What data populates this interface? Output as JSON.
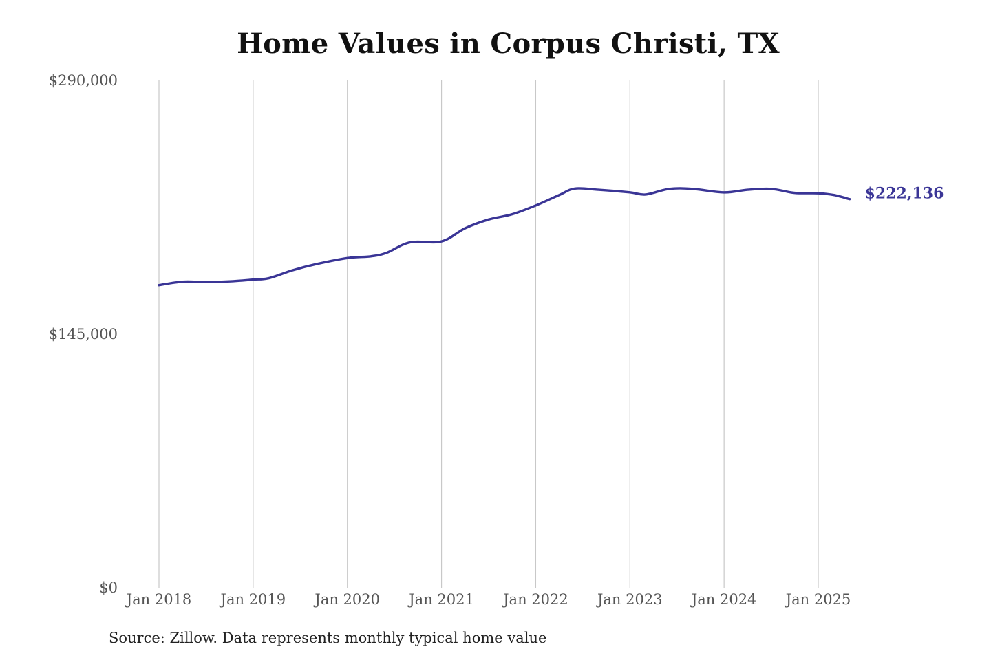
{
  "chart_data": {
    "type": "line",
    "title": "Home Values in Corpus Christi, TX",
    "xlabel": "",
    "ylabel": "",
    "ylim": [
      0,
      290000
    ],
    "y_ticks": [
      {
        "value": 0,
        "label": "$0"
      },
      {
        "value": 145000,
        "label": "$145,000"
      },
      {
        "value": 290000,
        "label": "$290,000"
      }
    ],
    "x_ticks": [
      {
        "value": "2018-01",
        "label": "Jan 2018"
      },
      {
        "value": "2019-01",
        "label": "Jan 2019"
      },
      {
        "value": "2020-01",
        "label": "Jan 2020"
      },
      {
        "value": "2021-01",
        "label": "Jan 2021"
      },
      {
        "value": "2022-01",
        "label": "Jan 2022"
      },
      {
        "value": "2023-01",
        "label": "Jan 2023"
      },
      {
        "value": "2024-01",
        "label": "Jan 2024"
      },
      {
        "value": "2025-01",
        "label": "Jan 2025"
      }
    ],
    "x_range": [
      "2018-01",
      "2025-05"
    ],
    "grid": {
      "vertical": true,
      "horizontal": false
    },
    "line_color": "#3a3596",
    "end_label": "$222,136",
    "series": [
      {
        "points": [
          {
            "x": "2018-01",
            "y": 173000
          },
          {
            "x": "2018-04",
            "y": 175000
          },
          {
            "x": "2018-07",
            "y": 174800
          },
          {
            "x": "2018-10",
            "y": 175200
          },
          {
            "x": "2019-01",
            "y": 176200
          },
          {
            "x": "2019-03",
            "y": 177000
          },
          {
            "x": "2019-06",
            "y": 181500
          },
          {
            "x": "2019-09",
            "y": 185000
          },
          {
            "x": "2020-01",
            "y": 188500
          },
          {
            "x": "2020-04",
            "y": 189500
          },
          {
            "x": "2020-06",
            "y": 191500
          },
          {
            "x": "2020-09",
            "y": 197500
          },
          {
            "x": "2021-01",
            "y": 198000
          },
          {
            "x": "2021-04",
            "y": 205500
          },
          {
            "x": "2021-07",
            "y": 210500
          },
          {
            "x": "2021-10",
            "y": 213500
          },
          {
            "x": "2022-01",
            "y": 218500
          },
          {
            "x": "2022-04",
            "y": 224500
          },
          {
            "x": "2022-06",
            "y": 228200
          },
          {
            "x": "2022-09",
            "y": 227500
          },
          {
            "x": "2023-01",
            "y": 226000
          },
          {
            "x": "2023-03",
            "y": 224800
          },
          {
            "x": "2023-06",
            "y": 228000
          },
          {
            "x": "2023-09",
            "y": 228000
          },
          {
            "x": "2024-01",
            "y": 226000
          },
          {
            "x": "2024-04",
            "y": 227500
          },
          {
            "x": "2024-07",
            "y": 228000
          },
          {
            "x": "2024-10",
            "y": 225700
          },
          {
            "x": "2025-01",
            "y": 225500
          },
          {
            "x": "2025-03",
            "y": 224500
          },
          {
            "x": "2025-05",
            "y": 222136
          }
        ]
      }
    ]
  },
  "source_note": "Source: Zillow. Data represents monthly typical home value"
}
